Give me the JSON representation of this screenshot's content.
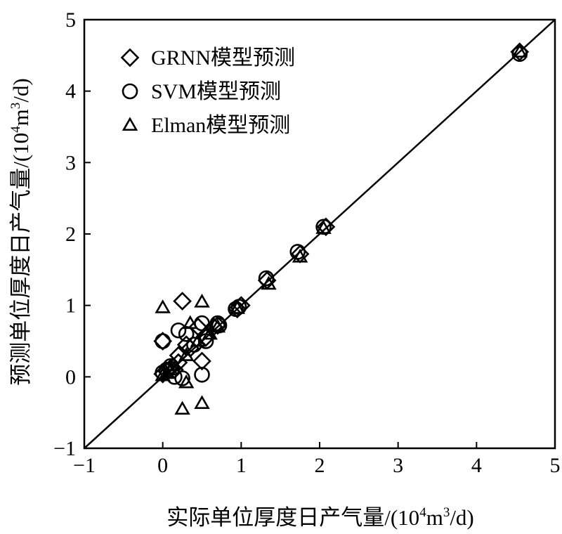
{
  "chart_data": {
    "type": "scatter",
    "xlabel": {
      "main": "实际单位厚度日产气量/(10",
      "exp1": "4",
      "mid": "m",
      "exp2": "3",
      "end": "/d)"
    },
    "ylabel": {
      "main": "预测单位厚度日产气量/(10",
      "exp1": "4",
      "mid": "m",
      "exp2": "3",
      "end": "/d)"
    },
    "xlim": [
      -1,
      5
    ],
    "ylim": [
      -1,
      5
    ],
    "xticks": [
      "−1",
      "0",
      "1",
      "2",
      "3",
      "4",
      "5"
    ],
    "yticks": [
      "−1",
      "0",
      "1",
      "2",
      "3",
      "4",
      "5"
    ],
    "legend_position": "top-left",
    "reference_line": {
      "from": [
        -1,
        -1
      ],
      "to": [
        5,
        5
      ]
    },
    "series": [
      {
        "name": "GRNN模型预测",
        "marker": "diamond",
        "points": [
          [
            0.0,
            0.04
          ],
          [
            0.05,
            0.08
          ],
          [
            0.1,
            0.12
          ],
          [
            0.15,
            0.1
          ],
          [
            0.2,
            0.2
          ],
          [
            0.0,
            0.5
          ],
          [
            0.25,
            1.06
          ],
          [
            0.5,
            0.22
          ],
          [
            0.45,
            0.7
          ],
          [
            0.3,
            0.45
          ],
          [
            0.2,
            0.3
          ],
          [
            0.35,
            0.4
          ],
          [
            0.55,
            0.55
          ],
          [
            0.65,
            0.7
          ],
          [
            0.7,
            0.72
          ],
          [
            0.95,
            0.95
          ],
          [
            1.0,
            1.0
          ],
          [
            1.33,
            1.35
          ],
          [
            1.75,
            1.72
          ],
          [
            2.08,
            2.1
          ],
          [
            4.55,
            4.55
          ]
        ]
      },
      {
        "name": "SVM模型预测",
        "marker": "circle",
        "points": [
          [
            0.0,
            0.06
          ],
          [
            0.05,
            0.1
          ],
          [
            0.1,
            0.15
          ],
          [
            0.0,
            0.5
          ],
          [
            0.2,
            0.65
          ],
          [
            0.15,
            0.0
          ],
          [
            0.25,
            -0.02
          ],
          [
            0.5,
            0.03
          ],
          [
            0.3,
            0.6
          ],
          [
            0.5,
            0.75
          ],
          [
            0.4,
            0.45
          ],
          [
            0.55,
            0.5
          ],
          [
            0.7,
            0.75
          ],
          [
            0.72,
            0.72
          ],
          [
            0.93,
            0.95
          ],
          [
            0.97,
            0.98
          ],
          [
            1.32,
            1.38
          ],
          [
            1.72,
            1.75
          ],
          [
            2.05,
            2.1
          ],
          [
            4.55,
            4.52
          ]
        ]
      },
      {
        "name": "Elman模型预测",
        "marker": "triangle",
        "points": [
          [
            0.0,
            0.02
          ],
          [
            0.0,
            0.97
          ],
          [
            0.05,
            0.05
          ],
          [
            0.1,
            0.1
          ],
          [
            0.3,
            -0.08
          ],
          [
            0.25,
            -0.45
          ],
          [
            0.5,
            -0.37
          ],
          [
            0.5,
            1.05
          ],
          [
            0.35,
            0.75
          ],
          [
            0.3,
            0.3
          ],
          [
            0.45,
            0.5
          ],
          [
            0.6,
            0.6
          ],
          [
            0.7,
            0.7
          ],
          [
            0.95,
            0.96
          ],
          [
            1.35,
            1.3
          ],
          [
            1.75,
            1.68
          ],
          [
            2.05,
            2.08
          ],
          [
            4.55,
            4.55
          ]
        ]
      }
    ]
  }
}
